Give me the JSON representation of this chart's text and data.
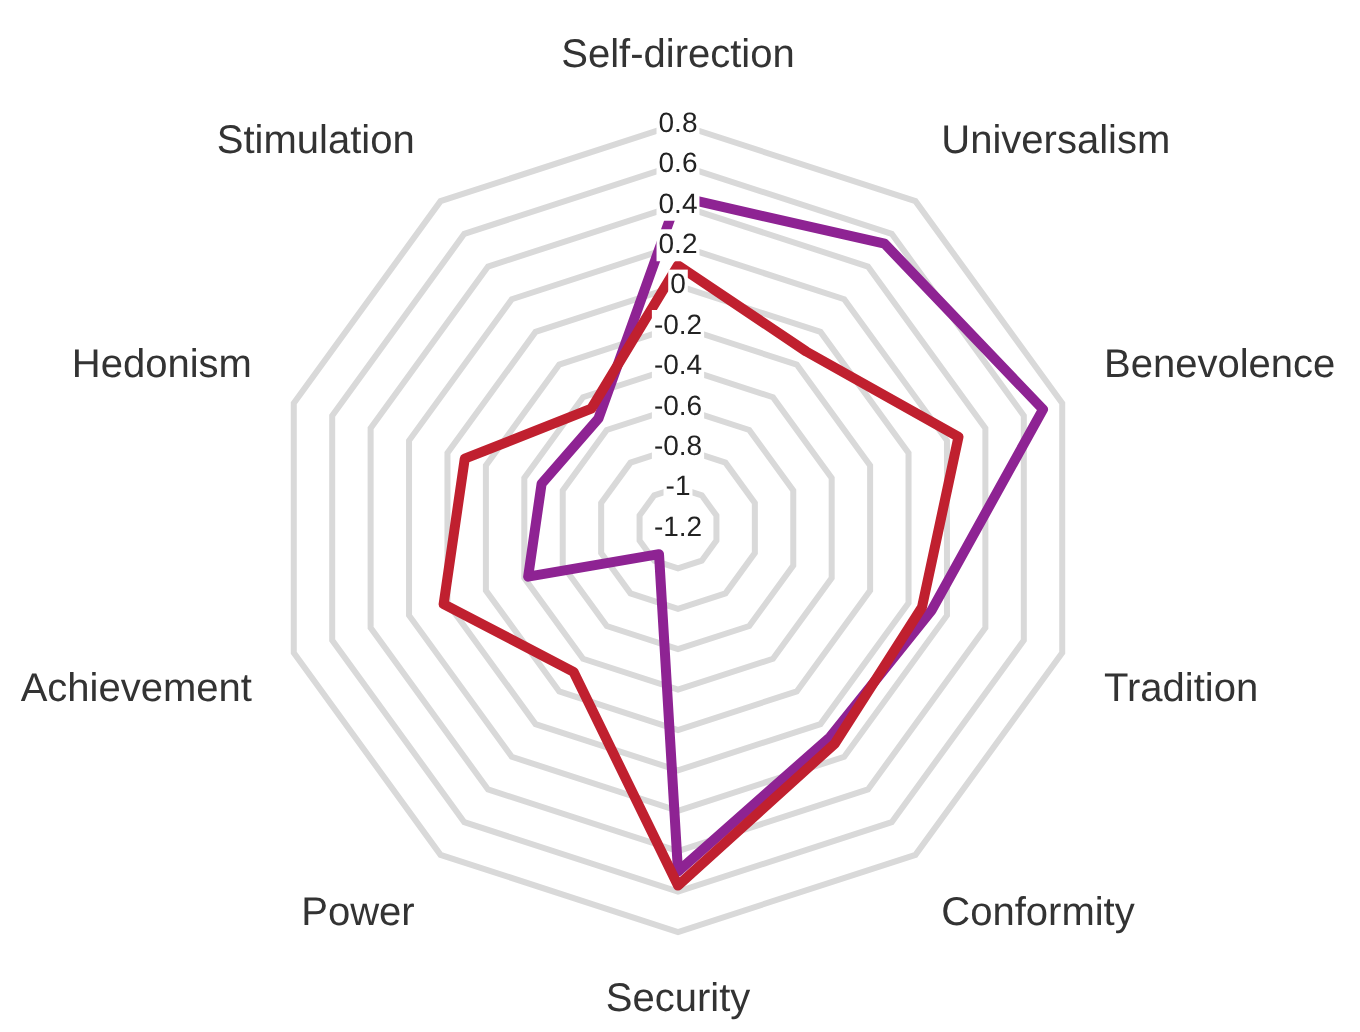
{
  "chart_data": {
    "type": "radar",
    "categories": [
      "Self-direction",
      "Universalism",
      "Benevolence",
      "Tradition",
      "Conformity",
      "Security",
      "Power",
      "Achievement",
      "Hedonism",
      "Stimulation"
    ],
    "series": [
      {
        "color": "#c0202f",
        "values": [
          0.1,
          -0.12,
          0.26,
          0.07,
          0.12,
          0.57,
          -0.32,
          0.02,
          -0.09,
          -0.47
        ]
      },
      {
        "color": "#8e2393",
        "values": [
          0.44,
          0.54,
          0.7,
          0.12,
          0.08,
          0.5,
          -1.04,
          -0.42,
          -0.49,
          -0.53
        ]
      }
    ],
    "ylim": [
      -1.2,
      0.8
    ],
    "yticks": [
      -1.2,
      -1,
      -0.8,
      -0.6,
      -0.4,
      -0.2,
      0,
      0.2,
      0.4,
      0.6,
      0.8
    ],
    "grid": true,
    "legend": false,
    "marker": "none"
  }
}
